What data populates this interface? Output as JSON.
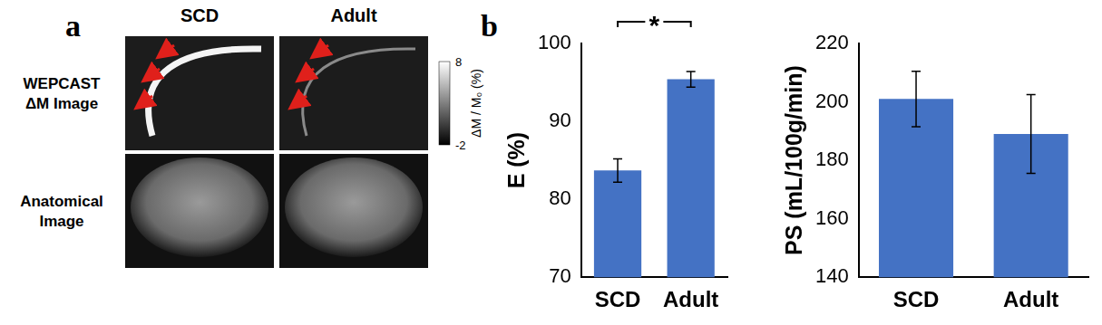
{
  "panel_labels": [
    "a",
    "b"
  ],
  "images": {
    "columns": [
      "SCD",
      "Adult"
    ],
    "rows": [
      [
        "WEPCAST",
        "ΔM Image"
      ],
      [
        "Anatomical",
        "Image"
      ]
    ],
    "colorbar": {
      "label": "ΔM / M₀ (%)",
      "range": [
        -2,
        8
      ],
      "ticks": [
        -2,
        8
      ]
    }
  },
  "chart_data": [
    {
      "type": "bar",
      "y_label": "E (%)",
      "categories": [
        "SCD",
        "Adult"
      ],
      "values": [
        83.7,
        95.4
      ],
      "errors": [
        1.5,
        1.0
      ],
      "color": "#4472c4",
      "ylim": [
        70,
        100
      ],
      "yticks": [
        70,
        80,
        90,
        100
      ],
      "grid": false,
      "annotations": [
        {
          "text": "*",
          "between": [
            "SCD",
            "Adult"
          ]
        }
      ]
    },
    {
      "type": "bar",
      "y_label": "PS (mL/100g/min)",
      "categories": [
        "SCD",
        "Adult"
      ],
      "values": [
        201,
        189
      ],
      "errors": [
        9.5,
        13.5
      ],
      "color": "#4472c4",
      "ylim": [
        140,
        220
      ],
      "yticks": [
        140,
        160,
        180,
        200,
        220
      ],
      "grid": false
    }
  ]
}
